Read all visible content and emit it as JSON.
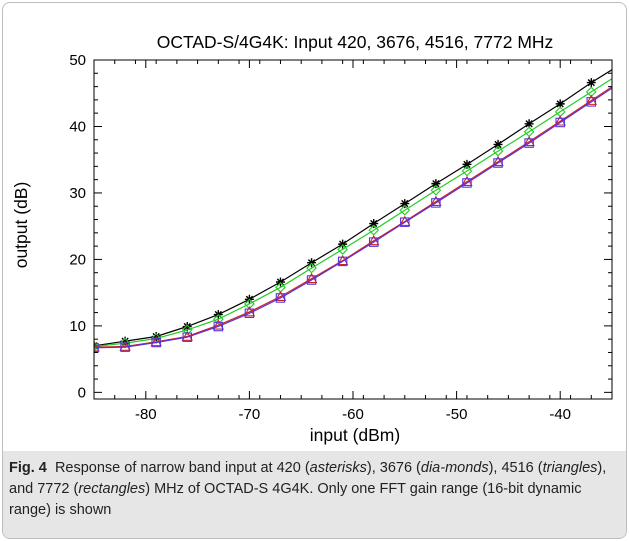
{
  "figure": {
    "caption_label": "Fig. 4",
    "caption_segments": [
      {
        "text": "Response of narrow band input at 420 (",
        "italic": false
      },
      {
        "text": "asterisks",
        "italic": true
      },
      {
        "text": "), 3676 (",
        "italic": false
      },
      {
        "text": "dia-monds",
        "italic": true
      },
      {
        "text": "), 4516 (",
        "italic": false
      },
      {
        "text": "triangles",
        "italic": true
      },
      {
        "text": "), and 7772 (",
        "italic": false
      },
      {
        "text": "rectangles",
        "italic": true
      },
      {
        "text": ") MHz of OCTAD-S 4G4K. Only one FFT gain range (16-bit dynamic range) is shown",
        "italic": false
      }
    ]
  },
  "chart_data": {
    "type": "line",
    "title": "OCTAD-S/4G4K: Input 420, 3676, 4516, 7772 MHz",
    "xlabel": "input (dBm)",
    "ylabel": "output (dB)",
    "xlim": [
      -85,
      -35
    ],
    "ylim": [
      -1,
      50
    ],
    "xticks": [
      -80,
      -70,
      -60,
      -50,
      -40
    ],
    "yticks": [
      0,
      10,
      20,
      30,
      40,
      50
    ],
    "grid": false,
    "legend": "none",
    "x": [
      -85,
      -82,
      -79,
      -76,
      -73,
      -70,
      -67,
      -64,
      -61,
      -58,
      -55,
      -52,
      -49,
      -46,
      -43,
      -40,
      -37,
      -34
    ],
    "series": [
      {
        "marker": "asterisk",
        "color": "#000000",
        "values": [
          7.0,
          7.7,
          8.4,
          9.9,
          11.7,
          14.0,
          16.6,
          19.5,
          22.3,
          25.4,
          28.4,
          31.4,
          34.3,
          37.3,
          40.4,
          43.4,
          46.6,
          49.5
        ]
      },
      {
        "marker": "diamond",
        "color": "#22cc22",
        "values": [
          6.9,
          7.4,
          8.1,
          9.4,
          11.0,
          13.3,
          15.8,
          18.7,
          21.5,
          24.4,
          27.4,
          30.4,
          33.3,
          36.3,
          39.2,
          42.2,
          45.2,
          48.2
        ]
      },
      {
        "marker": "triangle",
        "color": "#cc2222",
        "values": [
          6.8,
          6.9,
          7.6,
          8.4,
          10.1,
          12.1,
          14.4,
          17.1,
          19.8,
          22.8,
          25.7,
          28.7,
          31.7,
          34.7,
          37.7,
          40.8,
          43.9,
          47.0
        ]
      },
      {
        "marker": "rectangle",
        "color": "#5533dd",
        "values": [
          6.7,
          6.8,
          7.5,
          8.3,
          9.9,
          11.9,
          14.2,
          16.9,
          19.7,
          22.6,
          25.6,
          28.5,
          31.5,
          34.5,
          37.5,
          40.6,
          43.7,
          46.8
        ]
      }
    ]
  }
}
